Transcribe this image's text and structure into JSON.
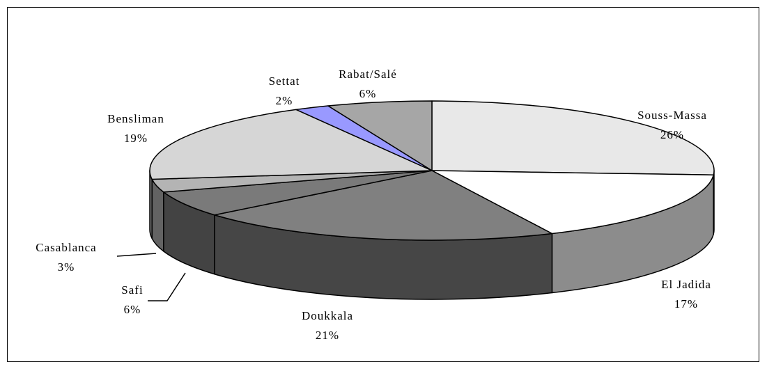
{
  "chart_data": {
    "type": "pie",
    "categories": [
      "Souss-Massa",
      "El Jadida",
      "Doukkala",
      "Safi",
      "Casablanca",
      "Bensliman",
      "Settat",
      "Rabat/Salé"
    ],
    "values": [
      26,
      17,
      21,
      6,
      3,
      19,
      2,
      6
    ],
    "value_labels": [
      "26%",
      "17%",
      "21%",
      "6%",
      "3%",
      "19%",
      "2%",
      "6%"
    ],
    "colors": [
      "#e8e8e8",
      "#ffffff",
      "#808080",
      "#7a7a7a",
      "#b4b4b4",
      "#d6d6d6",
      "#9999ff",
      "#a6a6a6"
    ]
  }
}
